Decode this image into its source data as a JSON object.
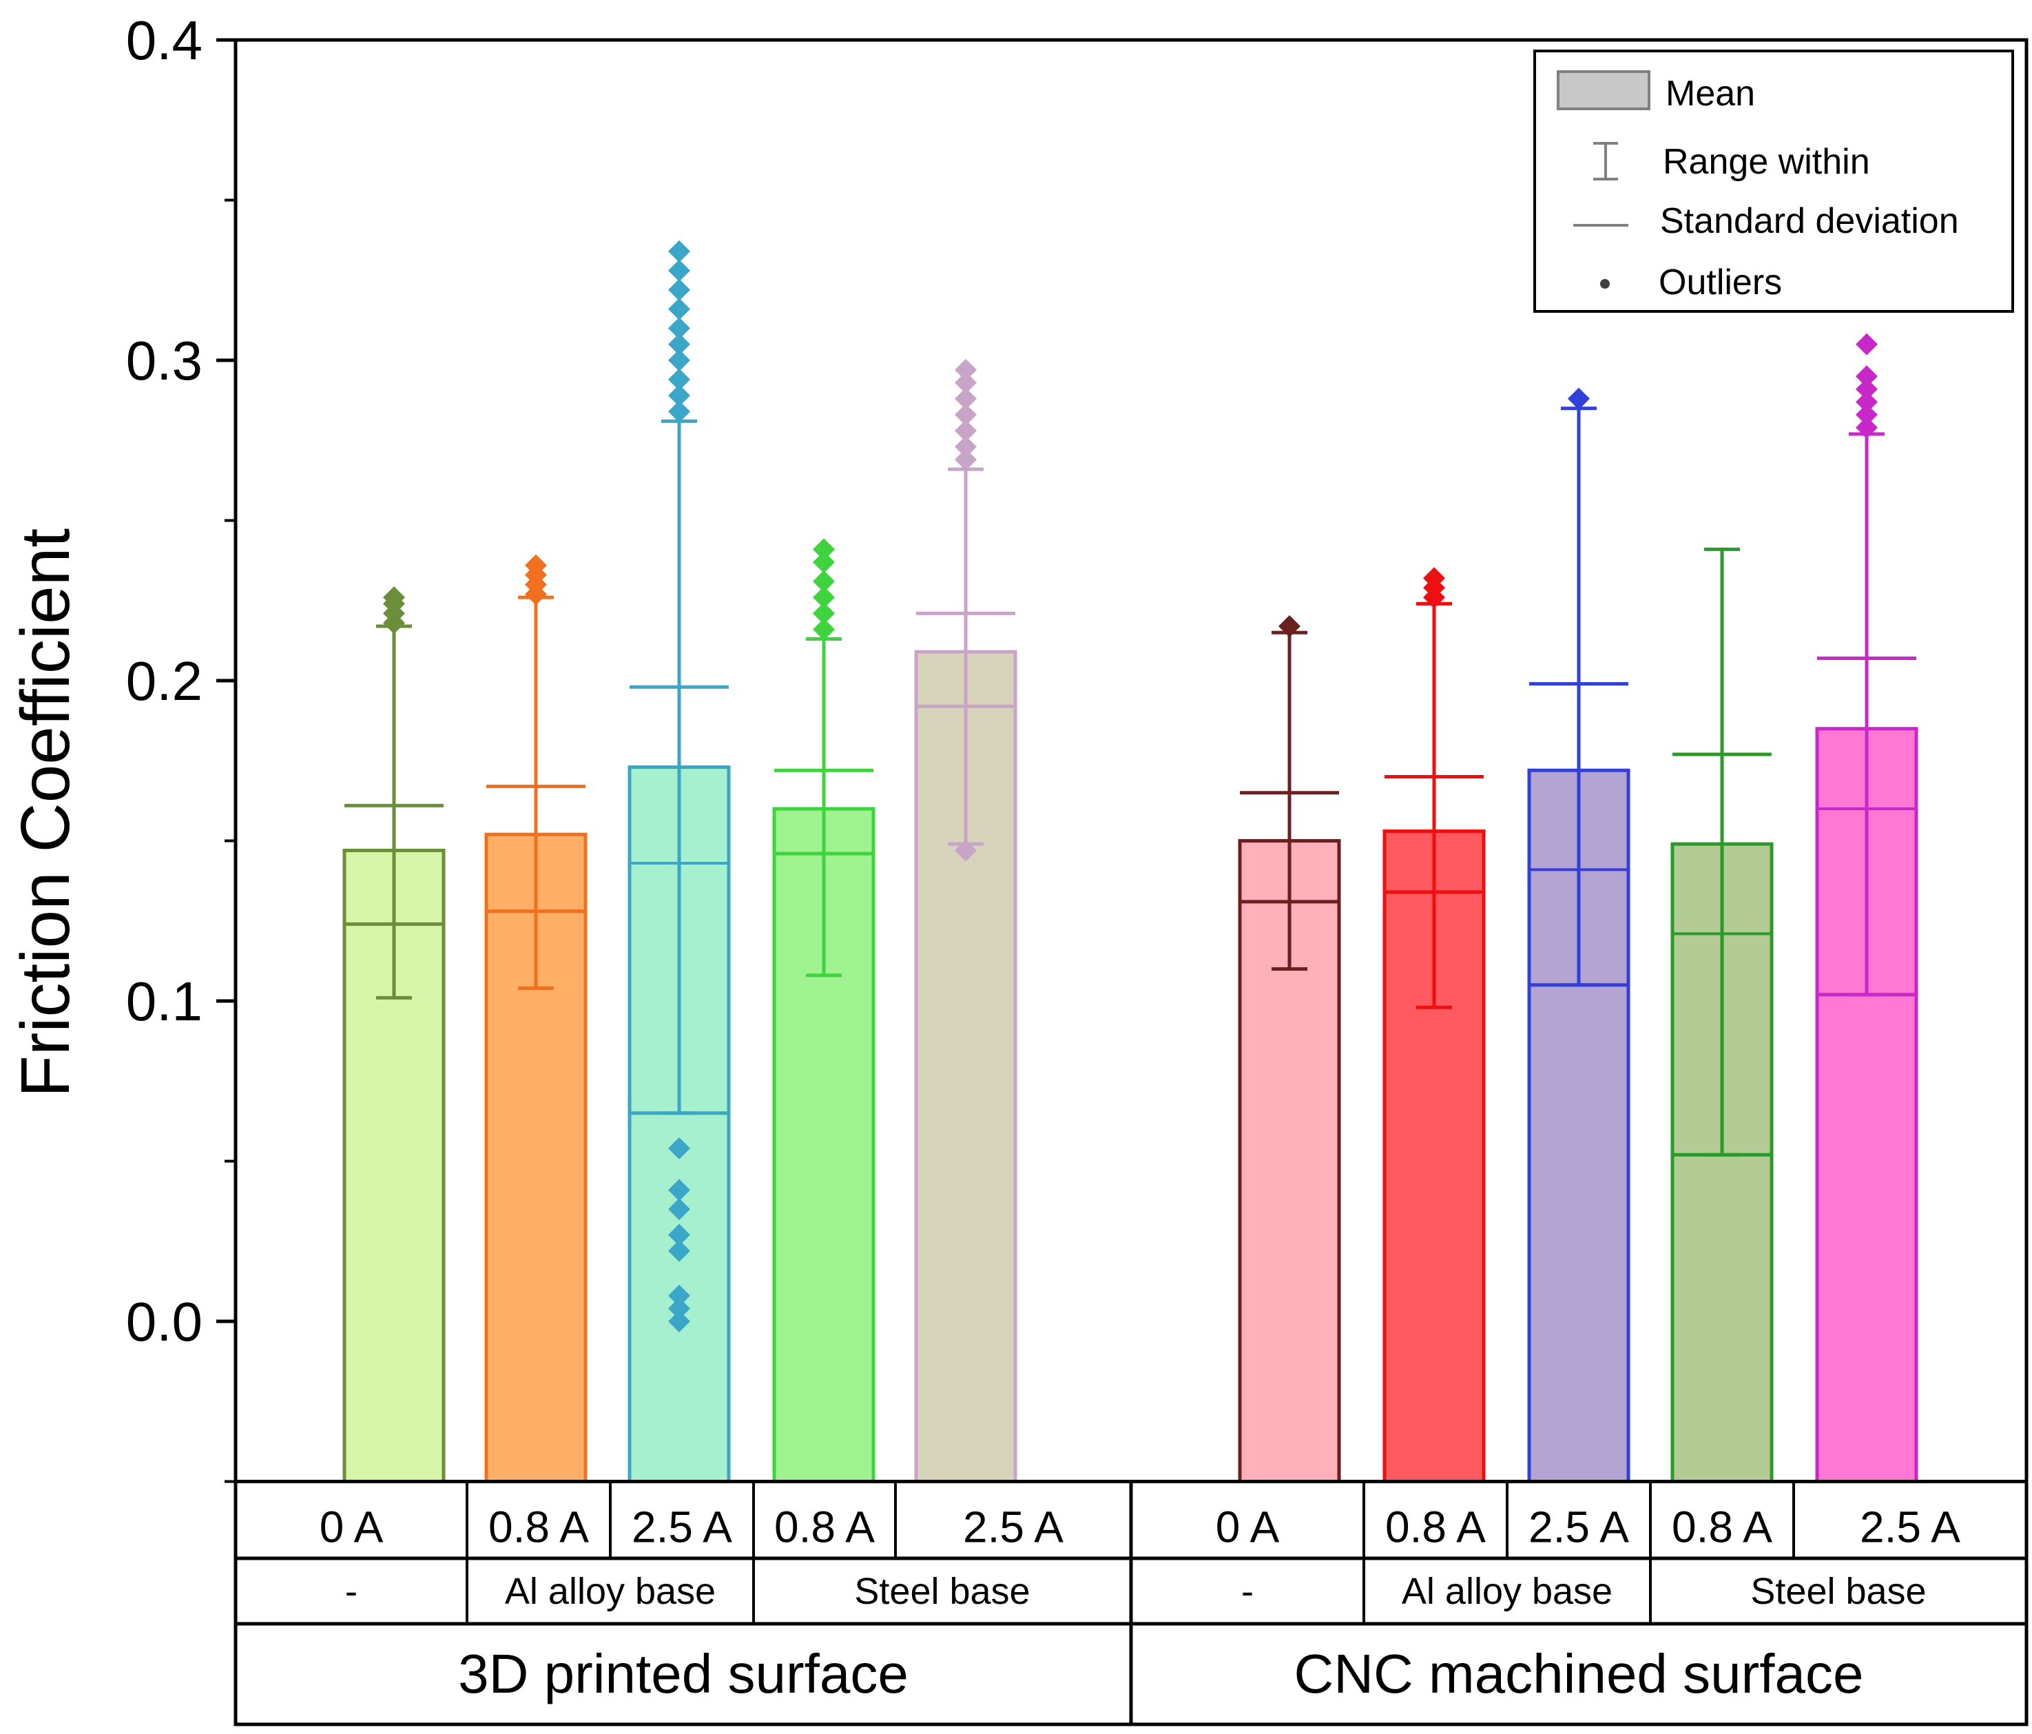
{
  "chart_data": {
    "type": "bar",
    "ylabel": "Friction Coefficient",
    "ylim": [
      -0.05,
      0.4
    ],
    "yticks": [
      "0.0",
      "0.1",
      "0.2",
      "0.3",
      "0.4"
    ],
    "legend": {
      "position": "top-right",
      "entries": [
        "Mean",
        "Range within",
        "Standard deviation",
        "Outliers"
      ]
    },
    "groups": [
      {
        "label": "3D printed surface",
        "bases": [
          "-",
          "Al alloy base",
          "Steel base"
        ]
      },
      {
        "label": "CNC machined surface",
        "bases": [
          "-",
          "Al alloy base",
          "Steel base"
        ]
      }
    ],
    "series": [
      {
        "group": "3D printed surface",
        "base": "-",
        "current": "0 A",
        "mean": 0.147,
        "median": 0.124,
        "sd_low": 0.124,
        "sd_high": 0.161,
        "range_low": 0.101,
        "range_high": 0.217,
        "outliers": [
          0.218,
          0.221,
          0.224,
          0.226
        ],
        "fill": "#d6f5a8",
        "stroke": "#6b8e3a"
      },
      {
        "group": "3D printed surface",
        "base": "Al alloy base",
        "current": "0.8 A",
        "mean": 0.152,
        "median": 0.128,
        "sd_low": 0.128,
        "sd_high": 0.167,
        "range_low": 0.104,
        "range_high": 0.226,
        "outliers": [
          0.227,
          0.23,
          0.233,
          0.236
        ],
        "fill": "#ffb066",
        "stroke": "#f07020"
      },
      {
        "group": "3D printed surface",
        "base": "Al alloy base",
        "current": "2.5 A",
        "mean": 0.173,
        "median": 0.143,
        "sd_low": 0.065,
        "sd_high": 0.198,
        "range_low": 0.065,
        "range_high": 0.281,
        "outliers": [
          0.0,
          0.004,
          0.008,
          0.022,
          0.027,
          0.035,
          0.041,
          0.054,
          0.284,
          0.289,
          0.294,
          0.3,
          0.305,
          0.31,
          0.316,
          0.322,
          0.328,
          0.334
        ],
        "fill": "#a6f0d0",
        "stroke": "#3aa6c8"
      },
      {
        "group": "3D printed surface",
        "base": "Steel base",
        "current": "0.8 A",
        "mean": 0.16,
        "median": 0.146,
        "sd_low": 0.146,
        "sd_high": 0.172,
        "range_low": 0.108,
        "range_high": 0.213,
        "outliers": [
          0.216,
          0.221,
          0.226,
          0.231,
          0.237,
          0.241
        ],
        "fill": "#a0f290",
        "stroke": "#3ed43e"
      },
      {
        "group": "3D printed surface",
        "base": "Steel base",
        "current": "2.5 A",
        "mean": 0.209,
        "median": 0.192,
        "sd_low": 0.192,
        "sd_high": 0.221,
        "range_low": 0.149,
        "range_high": 0.266,
        "outliers": [
          0.147,
          0.269,
          0.273,
          0.278,
          0.283,
          0.288,
          0.293,
          0.297
        ],
        "fill": "#d8d4bc",
        "stroke": "#c8a4c8"
      },
      {
        "group": "CNC machined surface",
        "base": "-",
        "current": "0 A",
        "mean": 0.15,
        "median": 0.131,
        "sd_low": 0.131,
        "sd_high": 0.165,
        "range_low": 0.11,
        "range_high": 0.215,
        "outliers": [
          0.217
        ],
        "fill": "#ffb0b8",
        "stroke": "#6b2020"
      },
      {
        "group": "CNC machined surface",
        "base": "Al alloy base",
        "current": "0.8 A",
        "mean": 0.153,
        "median": 0.134,
        "sd_low": 0.134,
        "sd_high": 0.17,
        "range_low": 0.098,
        "range_high": 0.224,
        "outliers": [
          0.226,
          0.229,
          0.232
        ],
        "fill": "#ff5a60",
        "stroke": "#ee1010"
      },
      {
        "group": "CNC machined surface",
        "base": "Al alloy base",
        "current": "2.5 A",
        "mean": 0.172,
        "median": 0.141,
        "sd_low": 0.105,
        "sd_high": 0.199,
        "range_low": 0.105,
        "range_high": 0.285,
        "outliers": [
          0.288
        ],
        "fill": "#b4a4d4",
        "stroke": "#3040d8"
      },
      {
        "group": "CNC machined surface",
        "base": "Steel base",
        "current": "0.8 A",
        "mean": 0.149,
        "median": 0.121,
        "sd_low": 0.052,
        "sd_high": 0.177,
        "range_low": 0.052,
        "range_high": 0.241,
        "outliers": [],
        "fill": "#b4cc94",
        "stroke": "#2a9a2a"
      },
      {
        "group": "CNC machined surface",
        "base": "Steel base",
        "current": "2.5 A",
        "mean": 0.185,
        "median": 0.16,
        "sd_low": 0.102,
        "sd_high": 0.207,
        "range_low": 0.102,
        "range_high": 0.277,
        "outliers": [
          0.279,
          0.283,
          0.287,
          0.291,
          0.295,
          0.305
        ],
        "fill": "#ff78d4",
        "stroke": "#c828c8"
      }
    ]
  }
}
